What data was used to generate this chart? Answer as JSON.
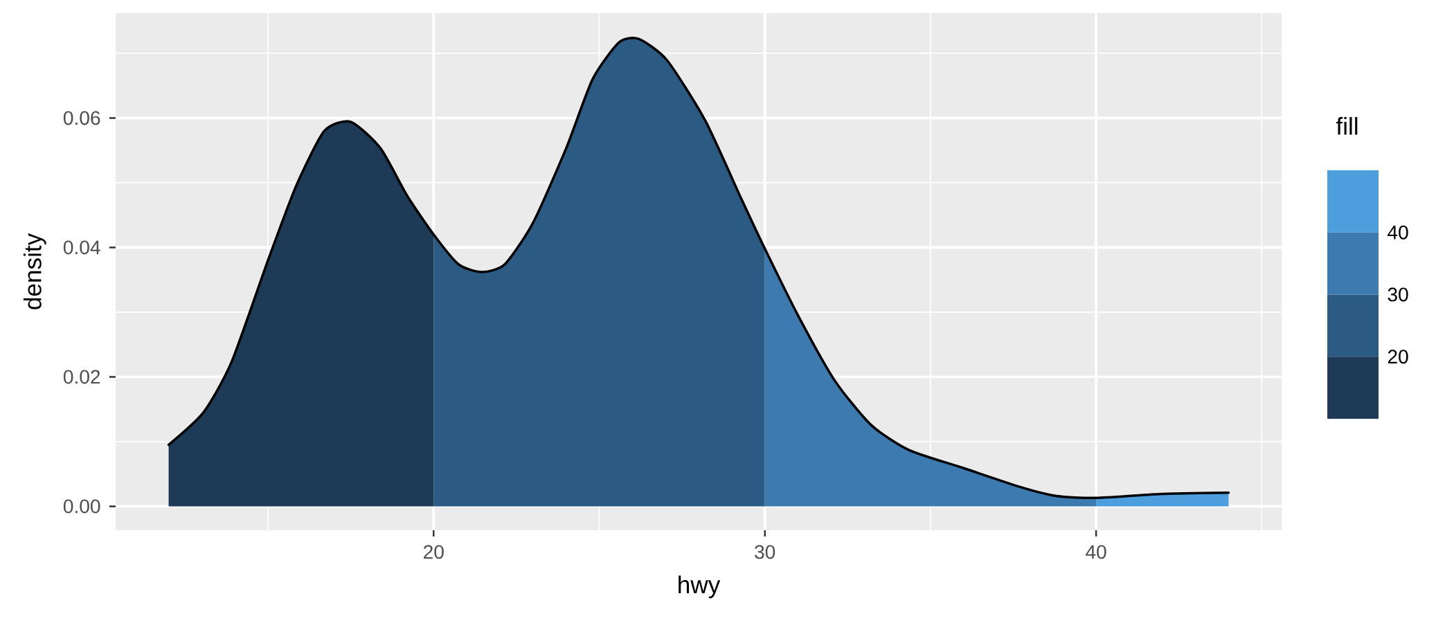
{
  "chart_data": {
    "type": "area",
    "xlabel": "hwy",
    "ylabel": "density",
    "clabel": "fill",
    "xlim": [
      10.4,
      45.6
    ],
    "ylim": [
      -0.0037,
      0.0762
    ],
    "xticks": [
      20,
      30,
      40
    ],
    "yticks": [
      {
        "value": 0,
        "label": "0.00"
      },
      {
        "value": 0.02,
        "label": "0.02"
      },
      {
        "value": 0.04,
        "label": "0.04"
      },
      {
        "value": 0.06,
        "label": "0.06"
      }
    ],
    "clim": [
      10,
      50
    ],
    "cticks": [
      20,
      30,
      40
    ],
    "grid": true,
    "series": [
      {
        "color": "#1d3a57",
        "x": [
          12,
          13.05,
          13.9,
          15.0,
          15.85,
          16.7,
          17.5,
          18.4,
          19.2,
          20
        ],
        "values": [
          0.0095,
          0.0145,
          0.0223,
          0.038,
          0.0495,
          0.058,
          0.0594,
          0.0553,
          0.048,
          0.042
        ]
      },
      {
        "color": "#2b5a82",
        "x": [
          20,
          20.75,
          21.45,
          22.15,
          23.0,
          24.0,
          24.8,
          25.6,
          26.2,
          27.05,
          28.2,
          29.3,
          30
        ],
        "values": [
          0.042,
          0.0374,
          0.0362,
          0.0374,
          0.0438,
          0.0553,
          0.066,
          0.0717,
          0.0722,
          0.0689,
          0.0596,
          0.0474,
          0.0398
        ]
      },
      {
        "color": "#3c7ab0",
        "x": [
          30,
          31.0,
          32.1,
          33.2,
          34.35,
          36.0,
          37.7,
          38.8,
          40
        ],
        "values": [
          0.0398,
          0.0295,
          0.0195,
          0.0126,
          0.0087,
          0.0059,
          0.003,
          0.0016,
          0.0013
        ]
      },
      {
        "color": "#4c9edd",
        "x": [
          40,
          41.9,
          44
        ],
        "values": [
          0.0013,
          0.0019,
          0.0021
        ]
      },
      {
        "type": "line",
        "color": "#000000",
        "x": [
          12,
          13.05,
          13.9,
          15.0,
          15.85,
          16.7,
          17.5,
          18.4,
          19.2,
          20,
          20.75,
          21.45,
          22.15,
          23.0,
          24.0,
          24.8,
          25.6,
          26.2,
          27.05,
          28.2,
          29.3,
          30,
          31.0,
          32.1,
          33.2,
          34.35,
          36.0,
          37.7,
          38.8,
          40,
          41.9,
          44
        ],
        "values": [
          0.0095,
          0.0145,
          0.0223,
          0.038,
          0.0495,
          0.058,
          0.0594,
          0.0553,
          0.048,
          0.042,
          0.0374,
          0.0362,
          0.0374,
          0.0438,
          0.0553,
          0.066,
          0.0717,
          0.0722,
          0.0689,
          0.0596,
          0.0474,
          0.0398,
          0.0295,
          0.0195,
          0.0126,
          0.0087,
          0.0059,
          0.003,
          0.0016,
          0.0013,
          0.0019,
          0.0021
        ]
      }
    ]
  }
}
